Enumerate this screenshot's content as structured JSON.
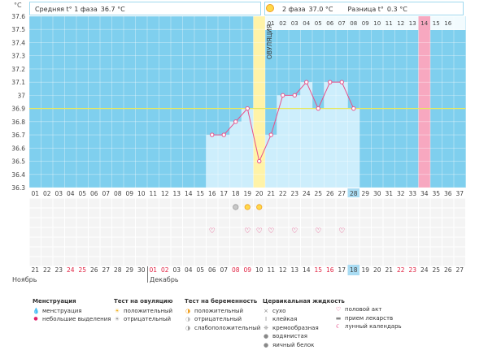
{
  "unit_label": "°C",
  "phase1": {
    "label": "Средняя t° 1 фаза",
    "value": "36.7 °C"
  },
  "phase2": {
    "label": "2 фаза",
    "value": "37.0 °C"
  },
  "diff": {
    "label": "Разница t°",
    "value": "0.3 °C"
  },
  "ovulation_label": "ОВУЛЯЦИЯ",
  "months": {
    "left": "Ноябрь",
    "right": "Декабрь"
  },
  "legend": {
    "menstruation": {
      "title": "Менструация",
      "items": [
        "менструация",
        "небольшие выделения"
      ]
    },
    "ovulation_test": {
      "title": "Тест на овуляцию",
      "items": [
        "положительный",
        "отрицательный"
      ]
    },
    "pregnancy_test": {
      "title": "Тест на беременность",
      "items": [
        "положительный",
        "отрицательный",
        "слабоположительный"
      ]
    },
    "cervical": {
      "title": "Цервикальная жидкость",
      "items": [
        "сухо",
        "клейкая",
        "кремообразная",
        "водянистая",
        "яичный белок"
      ]
    },
    "other": {
      "items": [
        "половой акт",
        "прием лекарств",
        "лунный календарь"
      ]
    }
  },
  "chart_data": {
    "type": "line",
    "title": "",
    "ylabel": "°C",
    "ylim": [
      36.3,
      37.6
    ],
    "yticks": [
      "37.6",
      "37.5",
      "37.4",
      "37.3",
      "37.2",
      "37.1",
      "37",
      "36.9",
      "36.8",
      "36.7",
      "36.6",
      "36.5",
      "36.4",
      "36.3"
    ],
    "cycle_days": [
      "01",
      "02",
      "03",
      "04",
      "05",
      "06",
      "07",
      "08",
      "09",
      "10",
      "11",
      "12",
      "13",
      "14",
      "15",
      "16",
      "17",
      "18",
      "19",
      "20",
      "21",
      "22",
      "23",
      "24",
      "25",
      "26",
      "27",
      "28",
      "29",
      "30",
      "31",
      "32",
      "33",
      "34",
      "35",
      "36",
      "37"
    ],
    "dates": [
      "21",
      "22",
      "23",
      "24",
      "25",
      "26",
      "27",
      "28",
      "29",
      "30",
      "01",
      "02",
      "03",
      "04",
      "05",
      "06",
      "07",
      "08",
      "09",
      "10",
      "11",
      "12",
      "13",
      "14",
      "15",
      "16",
      "17",
      "18",
      "19",
      "20",
      "21",
      "22",
      "23",
      "24",
      "25",
      "26",
      "27"
    ],
    "date_red": [
      false,
      false,
      false,
      true,
      true,
      false,
      false,
      false,
      false,
      false,
      true,
      true,
      false,
      false,
      false,
      false,
      false,
      true,
      true,
      false,
      false,
      false,
      false,
      false,
      true,
      true,
      false,
      false,
      false,
      false,
      false,
      true,
      true,
      false,
      false,
      false,
      false
    ],
    "post_ovulation_labels": [
      "01",
      "02",
      "03",
      "04",
      "05",
      "06",
      "07",
      "08",
      "09",
      "10",
      "11",
      "12",
      "13",
      "14",
      "15",
      "16"
    ],
    "temperatures": [
      {
        "day": 16,
        "value": 36.7
      },
      {
        "day": 17,
        "value": 36.7
      },
      {
        "day": 18,
        "value": 36.8
      },
      {
        "day": 19,
        "value": 36.9
      },
      {
        "day": 20,
        "value": 36.5
      },
      {
        "day": 21,
        "value": 36.7
      },
      {
        "day": 22,
        "value": 37.0
      },
      {
        "day": 23,
        "value": 37.0
      },
      {
        "day": 24,
        "value": 37.1
      },
      {
        "day": 25,
        "value": 36.9
      },
      {
        "day": 26,
        "value": 37.1
      },
      {
        "day": 27,
        "value": 37.1
      },
      {
        "day": 28,
        "value": 36.9
      }
    ],
    "coverline": 36.9,
    "ovulation_day": 21,
    "expected_period_day": 34,
    "today_day": 28,
    "ovulation_test_days": [
      {
        "day": 18,
        "result": "negative"
      },
      {
        "day": 19,
        "result": "positive"
      },
      {
        "day": 20,
        "result": "positive"
      }
    ],
    "intercourse_days": [
      16,
      19,
      20,
      21,
      23,
      25,
      27
    ],
    "colors": {
      "sky": "#7fcfee",
      "bar": "#cdeefc",
      "line": "#e8508a",
      "ovulation": "#fff3a8",
      "period": "#f7a8c0",
      "coverline": "#e8e860",
      "today": "#a9dcf3"
    }
  }
}
